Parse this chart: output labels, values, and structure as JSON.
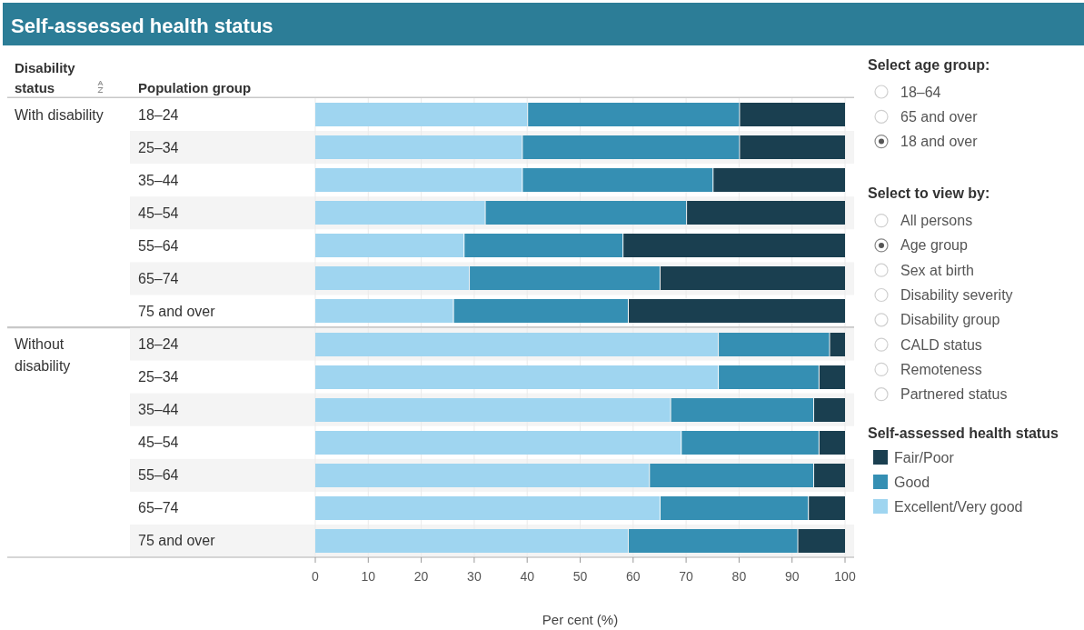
{
  "chart_data": [
    {
      "type": "other",
      "title": "Self-assessed health status"
    },
    {
      "type": "bar",
      "title": "With disability",
      "orientation": "horizontal",
      "stacked": true,
      "ylabel": "Population group",
      "tick_labels": "y",
      "annotations": [
        "Disability status"
      ],
      "categories": [
        "18–24",
        "25–34",
        "35–44",
        "45–54",
        "55–64",
        "65–74",
        "75 and over"
      ],
      "series": [
        {
          "color": "#9fd5f0",
          "values": [
            40,
            39,
            39,
            32,
            28,
            29,
            26
          ]
        },
        {
          "color": "#358fb3",
          "values": [
            40,
            41,
            36,
            38,
            30,
            36,
            33
          ]
        },
        {
          "color": "#1a3f50",
          "values": [
            20,
            20,
            25,
            30,
            42,
            35,
            41
          ]
        }
      ],
      "xlim": [
        0,
        100
      ],
      "xticks": [
        0,
        10,
        20,
        30,
        40,
        50,
        60,
        70,
        80,
        90,
        100
      ],
      "grid": "x"
    },
    {
      "type": "bar",
      "title": "Without disability",
      "orientation": "horizontal",
      "stacked": true,
      "xlabel": "Per cent (%)",
      "legend_title": "Self-assessed health status",
      "legend": "right",
      "categories": [
        "18–24",
        "25–34",
        "35–44",
        "45–54",
        "55–64",
        "65–74",
        "75 and over"
      ],
      "series": [
        {
          "name": "Excellent/Very good",
          "color": "#9fd5f0",
          "values": [
            76,
            76,
            67,
            69,
            63,
            65,
            59
          ]
        },
        {
          "name": "Good",
          "color": "#358fb3",
          "values": [
            21,
            19,
            27,
            26,
            31,
            28,
            32
          ]
        },
        {
          "name": "Fair/Poor",
          "color": "#1a3f50",
          "values": [
            3,
            5,
            6,
            5,
            6,
            7,
            9
          ]
        }
      ],
      "xlim": [
        0,
        100
      ],
      "xticks": [
        0,
        10,
        20,
        30,
        40,
        50,
        60,
        70,
        80,
        90,
        100
      ],
      "grid": "x"
    },
    {
      "type": "other",
      "title": "Select age group:",
      "annotations": [
        "18–64",
        "65 and over",
        "18 and over"
      ]
    },
    {
      "type": "other",
      "title": "Select to view by:",
      "annotations": [
        "All persons",
        "Age group",
        "Sex at birth",
        "Disability severity",
        "Disability group",
        "CALD status",
        "Remoteness",
        "Partnered status"
      ]
    }
  ]
}
